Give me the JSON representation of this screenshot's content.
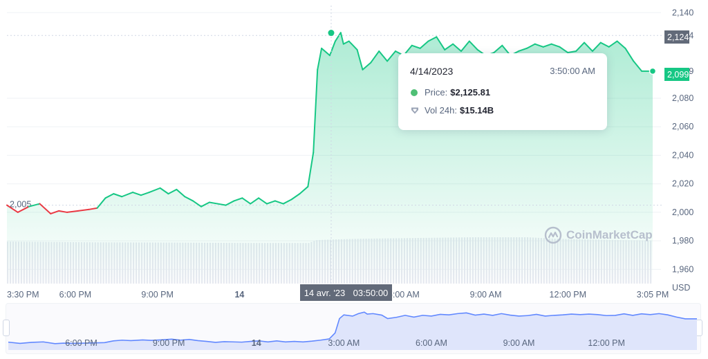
{
  "chart_data": {
    "type": "area",
    "title": "",
    "currency_label": "USD",
    "y_axis": {
      "ticks": [
        "2,140",
        "2,124",
        "2,099",
        "2,080",
        "2,060",
        "2,040",
        "2,020",
        "2,000",
        "1,980",
        "1,960"
      ],
      "ylim": [
        1950,
        2145
      ]
    },
    "x_axis": {
      "ticks": [
        {
          "label": "3:30 PM",
          "h": 0
        },
        {
          "label": "6:00 PM",
          "h": 2.5
        },
        {
          "label": "9:00 PM",
          "h": 5.5
        },
        {
          "label": "14",
          "h": 8.5,
          "bold": true
        },
        {
          "label": "6:00 AM",
          "h": 14.5
        },
        {
          "label": "9:00 AM",
          "h": 17.5
        },
        {
          "label": "12:00 PM",
          "h": 20.5
        },
        {
          "label": "3:05 PM",
          "h": 23.6
        }
      ],
      "xlim_hours": [
        0,
        23.6
      ]
    },
    "series": {
      "price": {
        "hours": [
          0,
          0.4,
          0.8,
          1.2,
          1.6,
          1.9,
          2.2,
          2.6,
          3.0,
          3.3,
          3.6,
          3.9,
          4.2,
          4.6,
          4.9,
          5.2,
          5.6,
          5.9,
          6.2,
          6.5,
          6.8,
          7.1,
          7.4,
          7.7,
          8.0,
          8.3,
          8.6,
          8.9,
          9.2,
          9.5,
          9.8,
          10.1,
          10.4,
          10.7,
          11.0,
          11.2,
          11.35,
          11.5,
          11.8,
          12.0,
          12.2,
          12.3,
          12.5,
          12.8,
          13.0,
          13.3,
          13.6,
          13.9,
          14.2,
          14.5,
          14.8,
          15.1,
          15.4,
          15.7,
          16.0,
          16.3,
          16.6,
          16.9,
          17.2,
          17.5,
          17.8,
          18.1,
          18.4,
          18.7,
          19.0,
          19.3,
          19.6,
          19.9,
          20.2,
          20.5,
          20.8,
          21.1,
          21.4,
          21.7,
          22.0,
          22.3,
          22.6,
          22.9,
          23.2,
          23.6
        ],
        "values": [
          2005,
          2000,
          2004,
          2006,
          1999,
          2001,
          2000,
          2001,
          2002,
          2003,
          2010,
          2013,
          2011,
          2014,
          2012,
          2014,
          2017,
          2013,
          2016,
          2011,
          2008,
          2004,
          2007,
          2006,
          2005,
          2008,
          2010,
          2006,
          2010,
          2006,
          2008,
          2006,
          2009,
          2013,
          2018,
          2042,
          2100,
          2115,
          2110,
          2120,
          2126,
          2118,
          2120,
          2114,
          2100,
          2105,
          2113,
          2106,
          2113,
          2110,
          2117,
          2115,
          2120,
          2123,
          2114,
          2118,
          2113,
          2120,
          2114,
          2110,
          2112,
          2117,
          2110,
          2113,
          2115,
          2118,
          2116,
          2118,
          2116,
          2112,
          2113,
          2119,
          2113,
          2119,
          2116,
          2120,
          2115,
          2106,
          2099,
          2099
        ],
        "rising_color": "#16c784",
        "falling_color": "#ea3943",
        "reference_price": 2005,
        "last_price": "2,099",
        "last_price_color": "#16c784"
      },
      "volume_24h": {
        "hours": [
          0,
          3.0,
          6.0,
          9.0,
          11.0,
          11.3,
          12.0,
          13.0,
          15.0,
          17.0,
          19.0,
          20.0,
          21.0,
          22.5,
          23.6
        ],
        "values": [
          1979.5,
          1979.0,
          1978.8,
          1978.5,
          1978.5,
          1980.5,
          1981.0,
          1981.5,
          1982.0,
          1982.5,
          1982.5,
          1981.5,
          1981.0,
          1980.5,
          1980.3
        ],
        "color": "#e6e9f0"
      }
    },
    "crosshair": {
      "hour": 11.85,
      "price_label": "2,124",
      "x_label_date": "14 avr. '23",
      "x_label_time": "03:50:00"
    }
  },
  "tooltip": {
    "date": "4/14/2023",
    "time": "3:50:00 AM",
    "price_label": "Price:",
    "price_value": "$2,125.81",
    "vol_label": "Vol 24h:",
    "vol_value": "$15.14B"
  },
  "watermark": "CoinMarketCap",
  "navigator": {
    "ticks": [
      "6:00 PM",
      "9:00 PM",
      "14",
      "3:00 AM",
      "6:00 AM",
      "9:00 AM",
      "12:00 PM"
    ],
    "line_color": "#6188ff",
    "fill_color": "#dfe5fb"
  },
  "colors": {
    "crosshair_tag": "#626a79",
    "grid": "#eff2f5"
  }
}
